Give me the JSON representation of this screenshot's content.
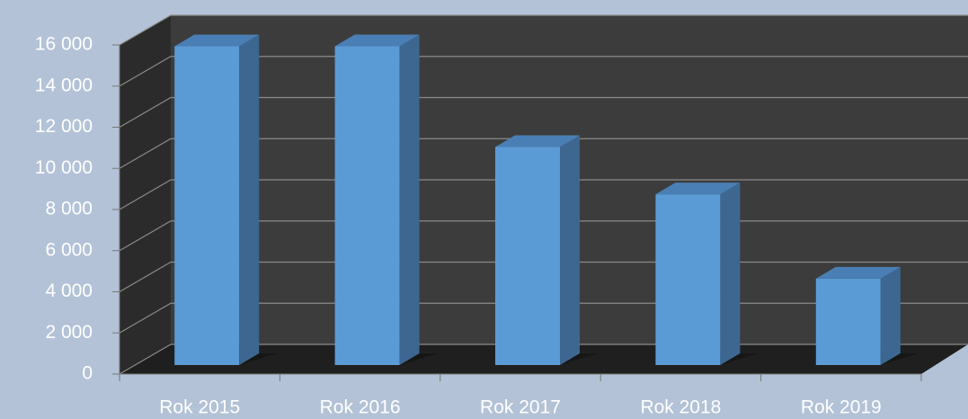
{
  "chart_data": {
    "type": "bar3d",
    "categories": [
      "Rok 2015",
      "Rok 2016",
      "Rok 2017",
      "Rok 2018",
      "Rok 2019"
    ],
    "values": [
      15500,
      15500,
      10600,
      8300,
      4200
    ],
    "color": "#5b9bd5",
    "ylim": [
      0,
      16000
    ],
    "yticks": [
      0,
      {
        "value": 2000,
        "label": "2 000"
      },
      {
        "value": 4000,
        "label": "4 000"
      },
      {
        "value": 6000,
        "label": "6 000"
      },
      {
        "value": 8000,
        "label": "8 000"
      },
      {
        "value": 10000,
        "label": "10 000"
      },
      {
        "value": 12000,
        "label": "12 000"
      },
      {
        "value": 14000,
        "label": "14 000"
      },
      {
        "value": 16000,
        "label": "16 000"
      }
    ],
    "grid": true
  }
}
